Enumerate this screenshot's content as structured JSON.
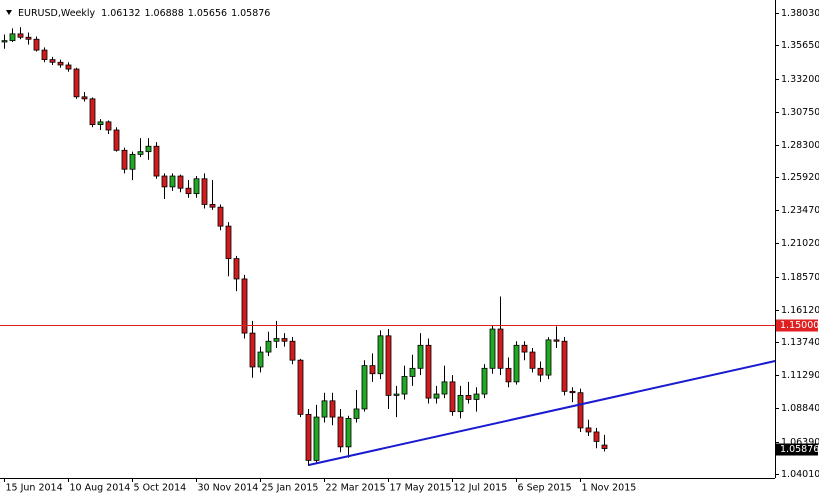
{
  "chart_data": {
    "type": "candlestick",
    "title": "EURUSD,Weekly",
    "categories": [
      "15 Jun 2014",
      null,
      null,
      null,
      null,
      null,
      null,
      null,
      "10 Aug 2014",
      null,
      null,
      null,
      null,
      null,
      null,
      null,
      "5 Oct 2014",
      null,
      null,
      null,
      null,
      null,
      null,
      null,
      "30 Nov 2014",
      null,
      null,
      null,
      null,
      null,
      null,
      null,
      "25 Jan 2015",
      null,
      null,
      null,
      null,
      null,
      null,
      null,
      "22 Mar 2015",
      null,
      null,
      null,
      null,
      null,
      null,
      null,
      "17 May 2015",
      null,
      null,
      null,
      null,
      null,
      null,
      null,
      "12 Jul 2015",
      null,
      null,
      null,
      null,
      null,
      null,
      null,
      "6 Sep 2015",
      null,
      null,
      null,
      null,
      null,
      null,
      null,
      "1 Nov 2015",
      null,
      null,
      null
    ],
    "open": [
      1.359,
      1.36,
      1.365,
      1.3625,
      1.361,
      1.353,
      1.346,
      1.344,
      1.342,
      1.339,
      1.3185,
      1.317,
      1.298,
      1.3,
      1.294,
      1.279,
      1.265,
      1.276,
      1.278,
      1.282,
      1.26,
      1.252,
      1.26,
      1.251,
      1.247,
      1.258,
      1.239,
      1.237,
      1.223,
      1.199,
      1.184,
      1.144,
      1.119,
      1.13,
      1.138,
      1.14,
      1.138,
      1.124,
      1.084,
      1.05,
      1.082,
      1.094,
      1.082,
      1.06,
      1.081,
      1.088,
      1.12,
      1.114,
      1.142,
      1.098,
      1.099,
      1.112,
      1.118,
      1.135,
      1.096,
      1.099,
      1.108,
      1.086,
      1.098,
      1.095,
      1.099,
      1.118,
      1.147,
      1.118,
      1.108,
      1.135,
      1.13,
      1.118,
      1.113,
      1.139,
      1.138,
      1.101,
      1.1,
      1.074,
      1.071,
      1.06132
    ],
    "high": [
      1.3645,
      1.369,
      1.37,
      1.366,
      1.363,
      1.355,
      1.348,
      1.346,
      1.344,
      1.34,
      1.322,
      1.318,
      1.302,
      1.301,
      1.296,
      1.281,
      1.278,
      1.288,
      1.288,
      1.285,
      1.262,
      1.262,
      1.261,
      1.257,
      1.26,
      1.262,
      1.257,
      1.239,
      1.226,
      1.201,
      1.187,
      1.153,
      1.134,
      1.145,
      1.153,
      1.144,
      1.141,
      1.125,
      1.088,
      1.091,
      1.1,
      1.1,
      1.088,
      1.083,
      1.102,
      1.124,
      1.129,
      1.146,
      1.147,
      1.105,
      1.12,
      1.128,
      1.144,
      1.14,
      1.105,
      1.12,
      1.113,
      1.105,
      1.108,
      1.104,
      1.121,
      1.15,
      1.171,
      1.126,
      1.138,
      1.138,
      1.133,
      1.123,
      1.141,
      1.149,
      1.141,
      1.104,
      1.103,
      1.08,
      1.074,
      1.06888
    ],
    "low": [
      1.354,
      1.359,
      1.361,
      1.357,
      1.352,
      1.344,
      1.342,
      1.34,
      1.337,
      1.317,
      1.315,
      1.296,
      1.294,
      1.291,
      1.278,
      1.262,
      1.257,
      1.274,
      1.272,
      1.258,
      1.243,
      1.249,
      1.248,
      1.244,
      1.244,
      1.236,
      1.235,
      1.22,
      1.186,
      1.175,
      1.14,
      1.111,
      1.115,
      1.127,
      1.133,
      1.134,
      1.121,
      1.082,
      1.046,
      1.048,
      1.078,
      1.076,
      1.056,
      1.052,
      1.078,
      1.086,
      1.108,
      1.11,
      1.088,
      1.082,
      1.095,
      1.105,
      1.113,
      1.092,
      1.092,
      1.096,
      1.083,
      1.081,
      1.092,
      1.086,
      1.096,
      1.114,
      1.113,
      1.104,
      1.106,
      1.124,
      1.115,
      1.108,
      1.11,
      1.133,
      1.098,
      1.093,
      1.071,
      1.068,
      1.059,
      1.05656
    ],
    "close": [
      1.36,
      1.365,
      1.3625,
      1.361,
      1.353,
      1.346,
      1.344,
      1.342,
      1.339,
      1.3185,
      1.317,
      1.298,
      1.3,
      1.294,
      1.279,
      1.265,
      1.276,
      1.278,
      1.282,
      1.26,
      1.252,
      1.26,
      1.251,
      1.247,
      1.258,
      1.239,
      1.237,
      1.223,
      1.199,
      1.184,
      1.144,
      1.119,
      1.13,
      1.138,
      1.14,
      1.138,
      1.124,
      1.084,
      1.05,
      1.082,
      1.094,
      1.082,
      1.06,
      1.081,
      1.088,
      1.12,
      1.114,
      1.142,
      1.098,
      1.099,
      1.112,
      1.118,
      1.135,
      1.096,
      1.099,
      1.108,
      1.086,
      1.098,
      1.095,
      1.099,
      1.118,
      1.147,
      1.118,
      1.108,
      1.135,
      1.13,
      1.118,
      1.113,
      1.139,
      1.138,
      1.101,
      1.1,
      1.074,
      1.071,
      1.064,
      1.05876
    ],
    "up_color": "#22a822",
    "down_color": "#d01c1c",
    "ylim": [
      1.037,
      1.39
    ],
    "yticks": [
      {
        "value": 1.3803,
        "label": "1.38030"
      },
      {
        "value": 1.3565,
        "label": "1.35650"
      },
      {
        "value": 1.332,
        "label": "1.33200"
      },
      {
        "value": 1.3075,
        "label": "1.30750"
      },
      {
        "value": 1.283,
        "label": "1.28300"
      },
      {
        "value": 1.2592,
        "label": "1.25920"
      },
      {
        "value": 1.2347,
        "label": "1.23470"
      },
      {
        "value": 1.2102,
        "label": "1.21020"
      },
      {
        "value": 1.1857,
        "label": "1.18570"
      },
      {
        "value": 1.1612,
        "label": "1.16120"
      },
      {
        "value": 1.1374,
        "label": "1.13740"
      },
      {
        "value": 1.1129,
        "label": "1.11290"
      },
      {
        "value": 1.0884,
        "label": "1.08840"
      },
      {
        "value": 1.0639,
        "label": "1.06390"
      },
      {
        "value": 1.0401,
        "label": "1.04010"
      }
    ],
    "hline": {
      "value": 1.15,
      "label": "1.15000",
      "color": "#e02020"
    },
    "trendline": {
      "x": [
        38.1,
        96.4
      ],
      "y": [
        1.0466,
        1.1234
      ],
      "color": "#1a1ad0"
    }
  }
}
